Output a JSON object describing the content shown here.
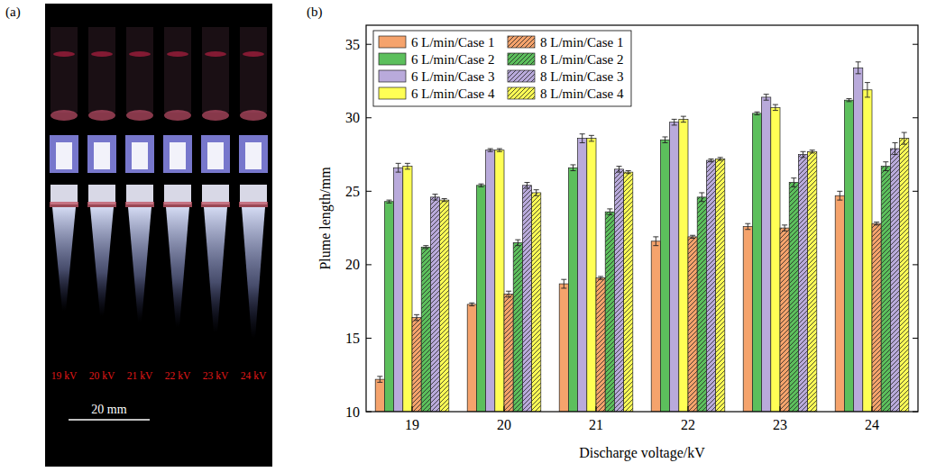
{
  "image_panel": {
    "label": "(a)",
    "voltage_labels": [
      "19 kV",
      "20 kV",
      "21 kV",
      "22 kV",
      "23 kV",
      "24 kV"
    ],
    "scale_bar": "20 mm"
  },
  "chart_data": {
    "type": "bar",
    "panel_label": "(b)",
    "x_label": "Discharge voltage/kV",
    "y_label": "Plume length/mm",
    "categories": [
      "19",
      "20",
      "21",
      "22",
      "23",
      "24"
    ],
    "ylim": [
      10,
      36.3
    ],
    "yticks": [
      10,
      15,
      20,
      25,
      30,
      35
    ],
    "legend": "upper left",
    "series": [
      {
        "name": "6 L/min/Case 1",
        "color": "#f5a36c",
        "line_style": "solid",
        "values": [
          12.2,
          17.3,
          18.7,
          21.6,
          22.6,
          24.7
        ],
        "errors": [
          0.2,
          0.1,
          0.3,
          0.3,
          0.2,
          0.3
        ]
      },
      {
        "name": "6 L/min/Case 2",
        "color": "#5cbf5c",
        "line_style": "solid",
        "values": [
          24.3,
          25.4,
          26.6,
          28.5,
          30.3,
          31.2
        ],
        "errors": [
          0.1,
          0.1,
          0.2,
          0.2,
          0.1,
          0.1
        ]
      },
      {
        "name": "6 L/min/Case 3",
        "color": "#b9aadb",
        "line_style": "solid",
        "values": [
          26.6,
          27.8,
          28.6,
          29.7,
          31.4,
          33.4
        ],
        "errors": [
          0.3,
          0.1,
          0.3,
          0.2,
          0.2,
          0.4
        ]
      },
      {
        "name": "6 L/min/Case 4",
        "color": "#ffff55",
        "line_style": "solid",
        "values": [
          26.7,
          27.8,
          28.6,
          29.9,
          30.7,
          31.9
        ],
        "errors": [
          0.2,
          0.1,
          0.2,
          0.2,
          0.2,
          0.5
        ]
      },
      {
        "name": "8 L/min/Case 1",
        "color": "#f5a36c",
        "line_style": "hatched",
        "values": [
          16.4,
          18.0,
          19.1,
          21.9,
          22.5,
          22.8
        ],
        "errors": [
          0.2,
          0.2,
          0.1,
          0.1,
          0.2,
          0.1
        ]
      },
      {
        "name": "8 L/min/Case 2",
        "color": "#5cbf5c",
        "line_style": "hatched",
        "values": [
          21.2,
          21.5,
          23.6,
          24.6,
          25.6,
          26.7
        ],
        "errors": [
          0.1,
          0.2,
          0.2,
          0.3,
          0.3,
          0.3
        ]
      },
      {
        "name": "8 L/min/Case 3",
        "color": "#b9aadb",
        "line_style": "hatched",
        "values": [
          24.6,
          25.4,
          26.5,
          27.1,
          27.5,
          27.9
        ],
        "errors": [
          0.2,
          0.2,
          0.2,
          0.1,
          0.2,
          0.4
        ]
      },
      {
        "name": "8 L/min/Case 4",
        "color": "#ffff55",
        "line_style": "hatched",
        "values": [
          24.4,
          24.9,
          26.3,
          27.2,
          27.7,
          28.6
        ],
        "errors": [
          0.1,
          0.2,
          0.1,
          0.1,
          0.1,
          0.4
        ]
      }
    ]
  }
}
